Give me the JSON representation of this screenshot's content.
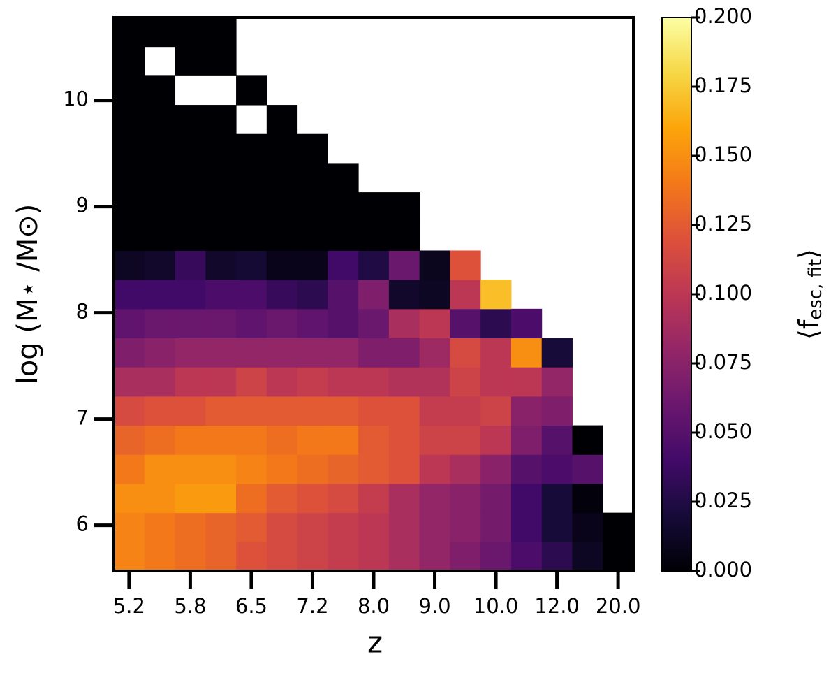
{
  "chart_data": {
    "type": "heatmap",
    "xlabel": "z",
    "ylabel": "log (M⋆ /M⊙)",
    "colorbar_label": [
      "⟨f",
      "esc, fit",
      "⟩"
    ],
    "categories": [
      "5.2",
      null,
      "5.8",
      null,
      "6.5",
      null,
      "7.2",
      null,
      "8.0",
      null,
      "9.0",
      null,
      "10.0",
      null,
      "12.0",
      null,
      "20.0"
    ],
    "ylim": [
      5.57,
      10.78
    ],
    "yticks": [
      6,
      7,
      8,
      9,
      10
    ],
    "colormap": "inferno",
    "zlim": [
      0,
      0.2
    ],
    "zticks": [
      {
        "value": 0,
        "label": "0.000"
      },
      {
        "value": 0.025,
        "label": "0.025"
      },
      {
        "value": 0.05,
        "label": "0.050"
      },
      {
        "value": 0.075,
        "label": "0.075"
      },
      {
        "value": 0.1,
        "label": "0.100"
      },
      {
        "value": 0.125,
        "label": "0.125"
      },
      {
        "value": 0.15,
        "label": "0.150"
      },
      {
        "value": 0.175,
        "label": "0.175"
      },
      {
        "value": 0.2,
        "label": "0.200"
      }
    ],
    "values": [
      [
        0.145,
        0.14,
        0.135,
        0.13,
        0.12,
        0.115,
        0.11,
        0.105,
        0.1,
        0.09,
        0.08,
        0.07,
        0.06,
        0.045,
        0.03,
        0.012,
        0.0
      ],
      [
        0.145,
        0.14,
        0.135,
        0.13,
        0.125,
        0.115,
        0.11,
        0.105,
        0.1,
        0.09,
        0.08,
        0.075,
        0.065,
        0.04,
        0.02,
        0.008,
        0.0
      ],
      [
        0.15,
        0.15,
        0.155,
        0.155,
        0.135,
        0.125,
        0.12,
        0.115,
        0.105,
        0.09,
        0.08,
        0.075,
        0.065,
        0.04,
        0.02,
        0.003,
        null
      ],
      [
        0.14,
        0.15,
        0.15,
        0.15,
        0.145,
        0.14,
        0.135,
        0.13,
        0.125,
        0.12,
        0.1,
        0.09,
        0.075,
        0.05,
        0.045,
        0.05,
        null
      ],
      [
        0.13,
        0.135,
        0.14,
        0.14,
        0.14,
        0.135,
        0.14,
        0.14,
        0.125,
        0.12,
        0.11,
        0.11,
        0.1,
        0.07,
        0.05,
        0.0,
        null
      ],
      [
        0.115,
        0.12,
        0.12,
        0.125,
        0.125,
        0.125,
        0.125,
        0.125,
        0.12,
        0.12,
        0.105,
        0.105,
        0.11,
        0.075,
        0.07,
        null,
        null
      ],
      [
        0.09,
        0.09,
        0.1,
        0.1,
        0.11,
        0.1,
        0.105,
        0.1,
        0.1,
        0.095,
        0.095,
        0.11,
        0.1,
        0.1,
        0.08,
        null,
        null
      ],
      [
        0.07,
        0.075,
        0.08,
        0.08,
        0.08,
        0.08,
        0.08,
        0.08,
        0.07,
        0.07,
        0.085,
        0.115,
        0.1,
        0.15,
        0.02,
        null,
        null
      ],
      [
        0.055,
        0.06,
        0.06,
        0.06,
        0.055,
        0.06,
        0.055,
        0.05,
        0.06,
        0.09,
        0.1,
        0.05,
        0.03,
        0.045,
        null,
        null,
        null
      ],
      [
        0.04,
        0.04,
        0.04,
        0.045,
        0.045,
        0.035,
        0.03,
        0.05,
        0.07,
        0.015,
        0.012,
        0.1,
        0.17,
        null,
        null,
        null,
        null
      ],
      [
        0.012,
        0.015,
        0.035,
        0.015,
        0.018,
        0.008,
        0.008,
        0.04,
        0.025,
        0.06,
        0.01,
        0.12,
        null,
        null,
        null,
        null,
        null
      ],
      [
        0,
        0,
        0,
        0,
        0,
        0,
        0,
        0,
        0,
        0,
        null,
        null,
        null,
        null,
        null,
        null,
        null
      ],
      [
        0,
        0,
        0,
        0,
        0,
        0,
        0,
        0,
        0,
        0,
        null,
        null,
        null,
        null,
        null,
        null,
        null
      ],
      [
        0,
        0,
        0,
        0,
        0,
        0,
        0,
        0,
        null,
        null,
        null,
        null,
        null,
        null,
        null,
        null,
        null
      ],
      [
        0,
        0,
        0,
        0,
        0,
        0,
        0,
        null,
        null,
        null,
        null,
        null,
        null,
        null,
        null,
        null,
        null
      ],
      [
        0,
        0,
        0,
        0,
        null,
        0,
        null,
        null,
        null,
        null,
        null,
        null,
        null,
        null,
        null,
        null,
        null
      ],
      [
        0,
        0,
        null,
        null,
        0,
        null,
        null,
        null,
        null,
        null,
        null,
        null,
        null,
        null,
        null,
        null,
        null
      ],
      [
        0,
        null,
        0,
        0,
        null,
        null,
        null,
        null,
        null,
        null,
        null,
        null,
        null,
        null,
        null,
        null,
        null
      ],
      [
        0,
        0,
        0,
        0,
        null,
        null,
        null,
        null,
        null,
        null,
        null,
        null,
        null,
        null,
        null,
        null,
        null
      ]
    ]
  }
}
